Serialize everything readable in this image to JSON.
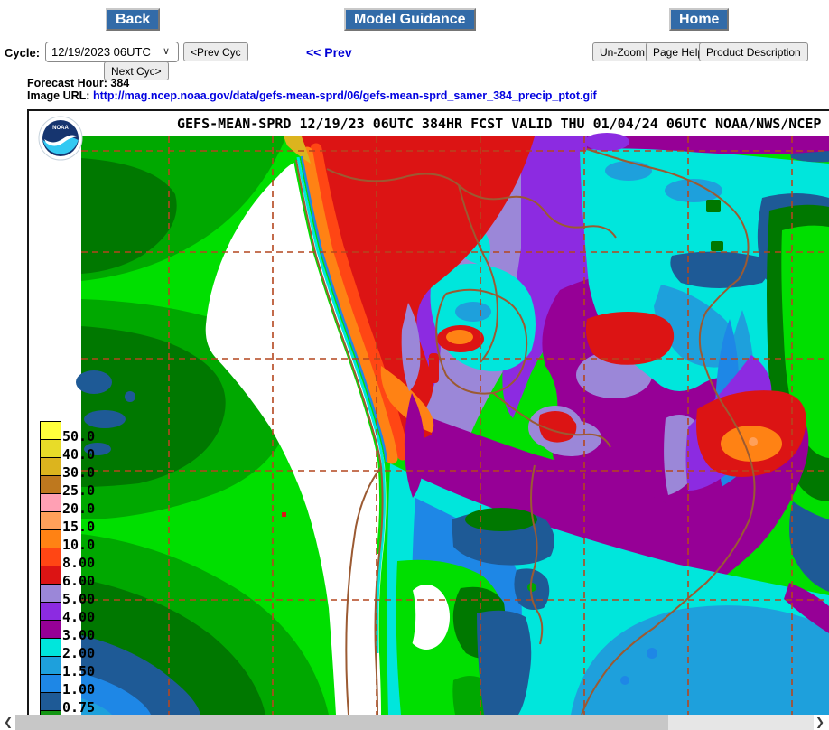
{
  "nav": {
    "back": "Back",
    "model_guidance": "Model Guidance",
    "home": "Home"
  },
  "controls": {
    "cycle_label": "Cycle:",
    "cycle_value": "12/19/2023 06UTC",
    "prev_cycle": "<Prev Cyc",
    "next_cycle": "Next Cyc>",
    "prev_link": "<< Prev",
    "unzoom": "Un-Zoom",
    "page_help": "Page Help",
    "product_description": "Product Description",
    "chevron_icon": "∨"
  },
  "info": {
    "forecast_hour_label": "Forecast Hour:",
    "forecast_hour_value": "384",
    "image_url_label": "Image URL:",
    "image_url": "http://mag.ncep.noaa.gov/data/gefs-mean-sprd/06/gefs-mean-sprd_samer_384_precip_ptot.gif"
  },
  "map": {
    "title": "GEFS-MEAN-SPRD 12/19/23 06UTC 384HR FCST VALID THU 01/04/24 06UTC NOAA/NWS/NCEP",
    "logo_text": "NOAA",
    "legend": {
      "boundary_labels": [
        "50.0",
        "40.0",
        "30.0",
        "25.0",
        "20.0",
        "15.0",
        "10.0",
        "8.00",
        "6.00",
        "5.00",
        "4.00",
        "3.00",
        "2.00",
        "1.50",
        "1.00",
        "0.75"
      ],
      "cell_colors": [
        "#FFFF3C",
        "#E8DC28",
        "#DCB41E",
        "#BE781E",
        "#FFA0B4",
        "#FFA05A",
        "#FF8214",
        "#FF4614",
        "#DC1414",
        "#9B87D8",
        "#8C2BE1",
        "#960096",
        "#00E6DC",
        "#1EA0DC",
        "#1E87E6",
        "#1E5A96",
        "#149614"
      ]
    },
    "accent_colors": {
      "nav_button_blue": "#326BA8",
      "link_blue": "#0000D6",
      "grid_dash": "#B4461E",
      "country_border": "#9B5A32"
    }
  },
  "scrollbar": {
    "left_arrow": "❮",
    "right_arrow": "❯"
  }
}
